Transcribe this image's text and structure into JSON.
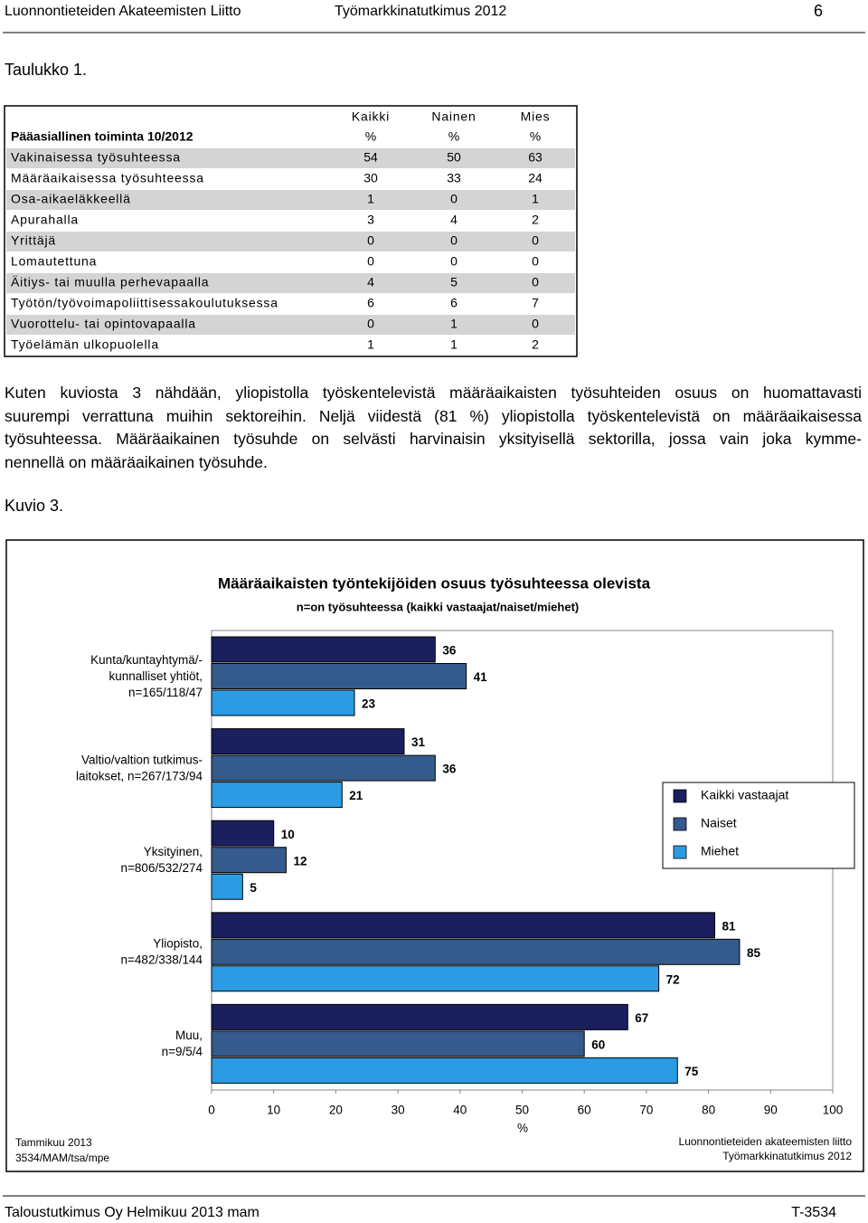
{
  "header": {
    "organization": "Luonnontieteiden Akateemisten Liitto",
    "survey": "Työmarkkinatutkimus 2012",
    "page": "6"
  },
  "table_caption": "Taulukko 1.",
  "table": {
    "columns": [
      "Kaikki",
      "Nainen",
      "Mies"
    ],
    "header_row": [
      "Pääasiallinen toiminta 10/2012",
      "%",
      "%",
      "%"
    ],
    "rows": [
      [
        "Vakinaisessa työsuhteessa",
        "54",
        "50",
        "63"
      ],
      [
        "Määräaikaisessa työsuhteessa",
        "30",
        "33",
        "24"
      ],
      [
        "Osa-aikaeläkkeellä",
        "1",
        "0",
        "1"
      ],
      [
        "Apurahalla",
        "3",
        "4",
        "2"
      ],
      [
        "Yrittäjä",
        "0",
        "0",
        "0"
      ],
      [
        "Lomautettuna",
        "0",
        "0",
        "0"
      ],
      [
        "Äitiys- tai muulla perhevapaalla",
        "4",
        "5",
        "0"
      ],
      [
        "Työtön/työvoimapoliittisessakoulutuksessa",
        "6",
        "6",
        "7"
      ],
      [
        "Vuorottelu- tai opintovapaalla",
        "0",
        "1",
        "0"
      ],
      [
        "Työelämän ulkopuolella",
        "1",
        "1",
        "2"
      ]
    ]
  },
  "paragraph": [
    "Kuten kuviosta 3 nähdään, yliopistolla työskentelevistä määräaikaisten työsuhteiden osuus on huomattavasti",
    "suurempi verrattuna muihin sektoreihin. Neljä viidestä (81 %) yliopistolla työskentelevistä on määräaikaisessa",
    "työsuhteessa. Määräaikainen työsuhde on selvästi harvinaisin yksityisellä sektorilla, jossa vain joka kymme-",
    "nennellä on määräaikainen työsuhde."
  ],
  "figure_caption": "Kuvio 3.",
  "chart_data": {
    "type": "hbar",
    "title": "Määräaikaisten työntekijöiden osuus työsuhteessa olevista",
    "subtitle": "n=on työsuhteessa (kaikki vastaajat/naiset/miehet)",
    "categories": [
      "Kunta/kuntayhtymä/-\nkunnalliset yhtiöt,\nn=165/118/47",
      "Valtio/valtion tutkimus-\nlaitokset, n=267/173/94",
      "Yksityinen,\nn=806/532/274",
      "Yliopisto,\nn=482/338/144",
      "Muu,\nn=9/5/4"
    ],
    "series": [
      {
        "name": "Kaikki vastaajat",
        "color": "#1b1f5e",
        "values": [
          36,
          31,
          10,
          81,
          67
        ]
      },
      {
        "name": "Naiset",
        "color": "#355a8c",
        "values": [
          41,
          36,
          12,
          85,
          60
        ]
      },
      {
        "name": "Miehet",
        "color": "#2b9ce3",
        "values": [
          23,
          21,
          5,
          72,
          75
        ]
      }
    ],
    "xlim": [
      0,
      100
    ],
    "xticks": [
      0,
      10,
      20,
      30,
      40,
      50,
      60,
      70,
      80,
      90,
      100
    ],
    "xlabel": "%",
    "legend": "right",
    "source_left": [
      "Tammikuu 2013",
      "3534/MAM/tsa/mpe"
    ],
    "source_right": [
      "Luonnontieteiden akateemisten liitto",
      "Työmarkkinatutkimus 2012"
    ]
  },
  "footer": {
    "left": "Taloustutkimus Oy Helmikuu 2013 mam",
    "right": "T-3534"
  }
}
